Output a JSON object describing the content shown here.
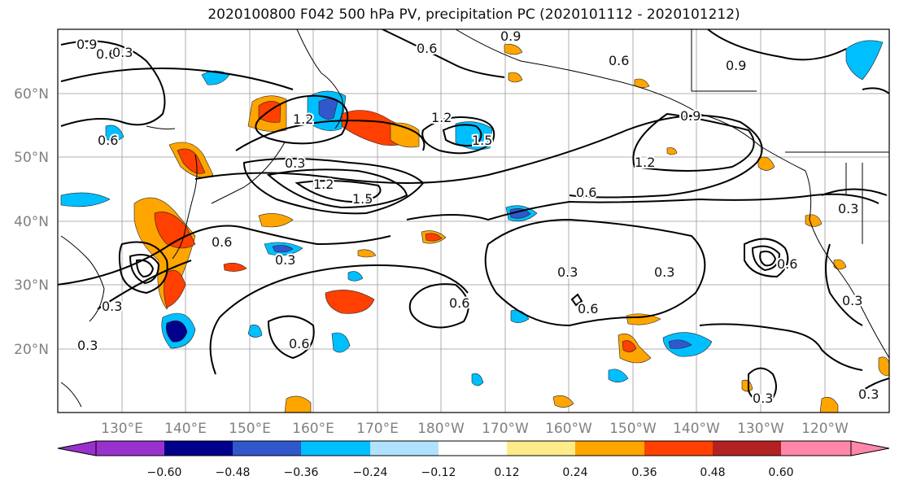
{
  "title": "2020100800 F042 500 hPa PV, precipitation PC (2020101112 - 2020101212)",
  "map": {
    "lon_labels": [
      "130°E",
      "140°E",
      "150°E",
      "160°E",
      "170°E",
      "180°W",
      "170°W",
      "160°W",
      "150°W",
      "140°W",
      "130°W",
      "120°W"
    ],
    "lat_labels": [
      "60°N",
      "50°N",
      "40°N",
      "30°N",
      "20°N"
    ],
    "contour_labels": [
      "0.9",
      "0.6",
      "0.3",
      "1.2",
      "0.6",
      "0.3",
      "1.2",
      "1.5",
      "0.6",
      "0.9",
      "0.6",
      "1.2",
      "1.5",
      "0.9",
      "0.9",
      "1.2",
      "0.6",
      "0.3",
      "0.6",
      "0.3",
      "0.3",
      "0.3",
      "0.6",
      "0.6",
      "0.3",
      "0.6",
      "0.3",
      "0.3",
      "0.3",
      "0.6",
      "0.3"
    ]
  },
  "colorbar": {
    "colors": [
      "#9932cc",
      "#00008b",
      "#3157cc",
      "#00bfff",
      "#b0e2ff",
      "#ffffff",
      "#ffeb8a",
      "#ffa500",
      "#ff4000",
      "#b22222",
      "#ff88aa"
    ],
    "labels": [
      "−0.60",
      "−0.48",
      "−0.36",
      "−0.24",
      "−0.12",
      "0.12",
      "0.24",
      "0.36",
      "0.48",
      "0.60"
    ]
  }
}
